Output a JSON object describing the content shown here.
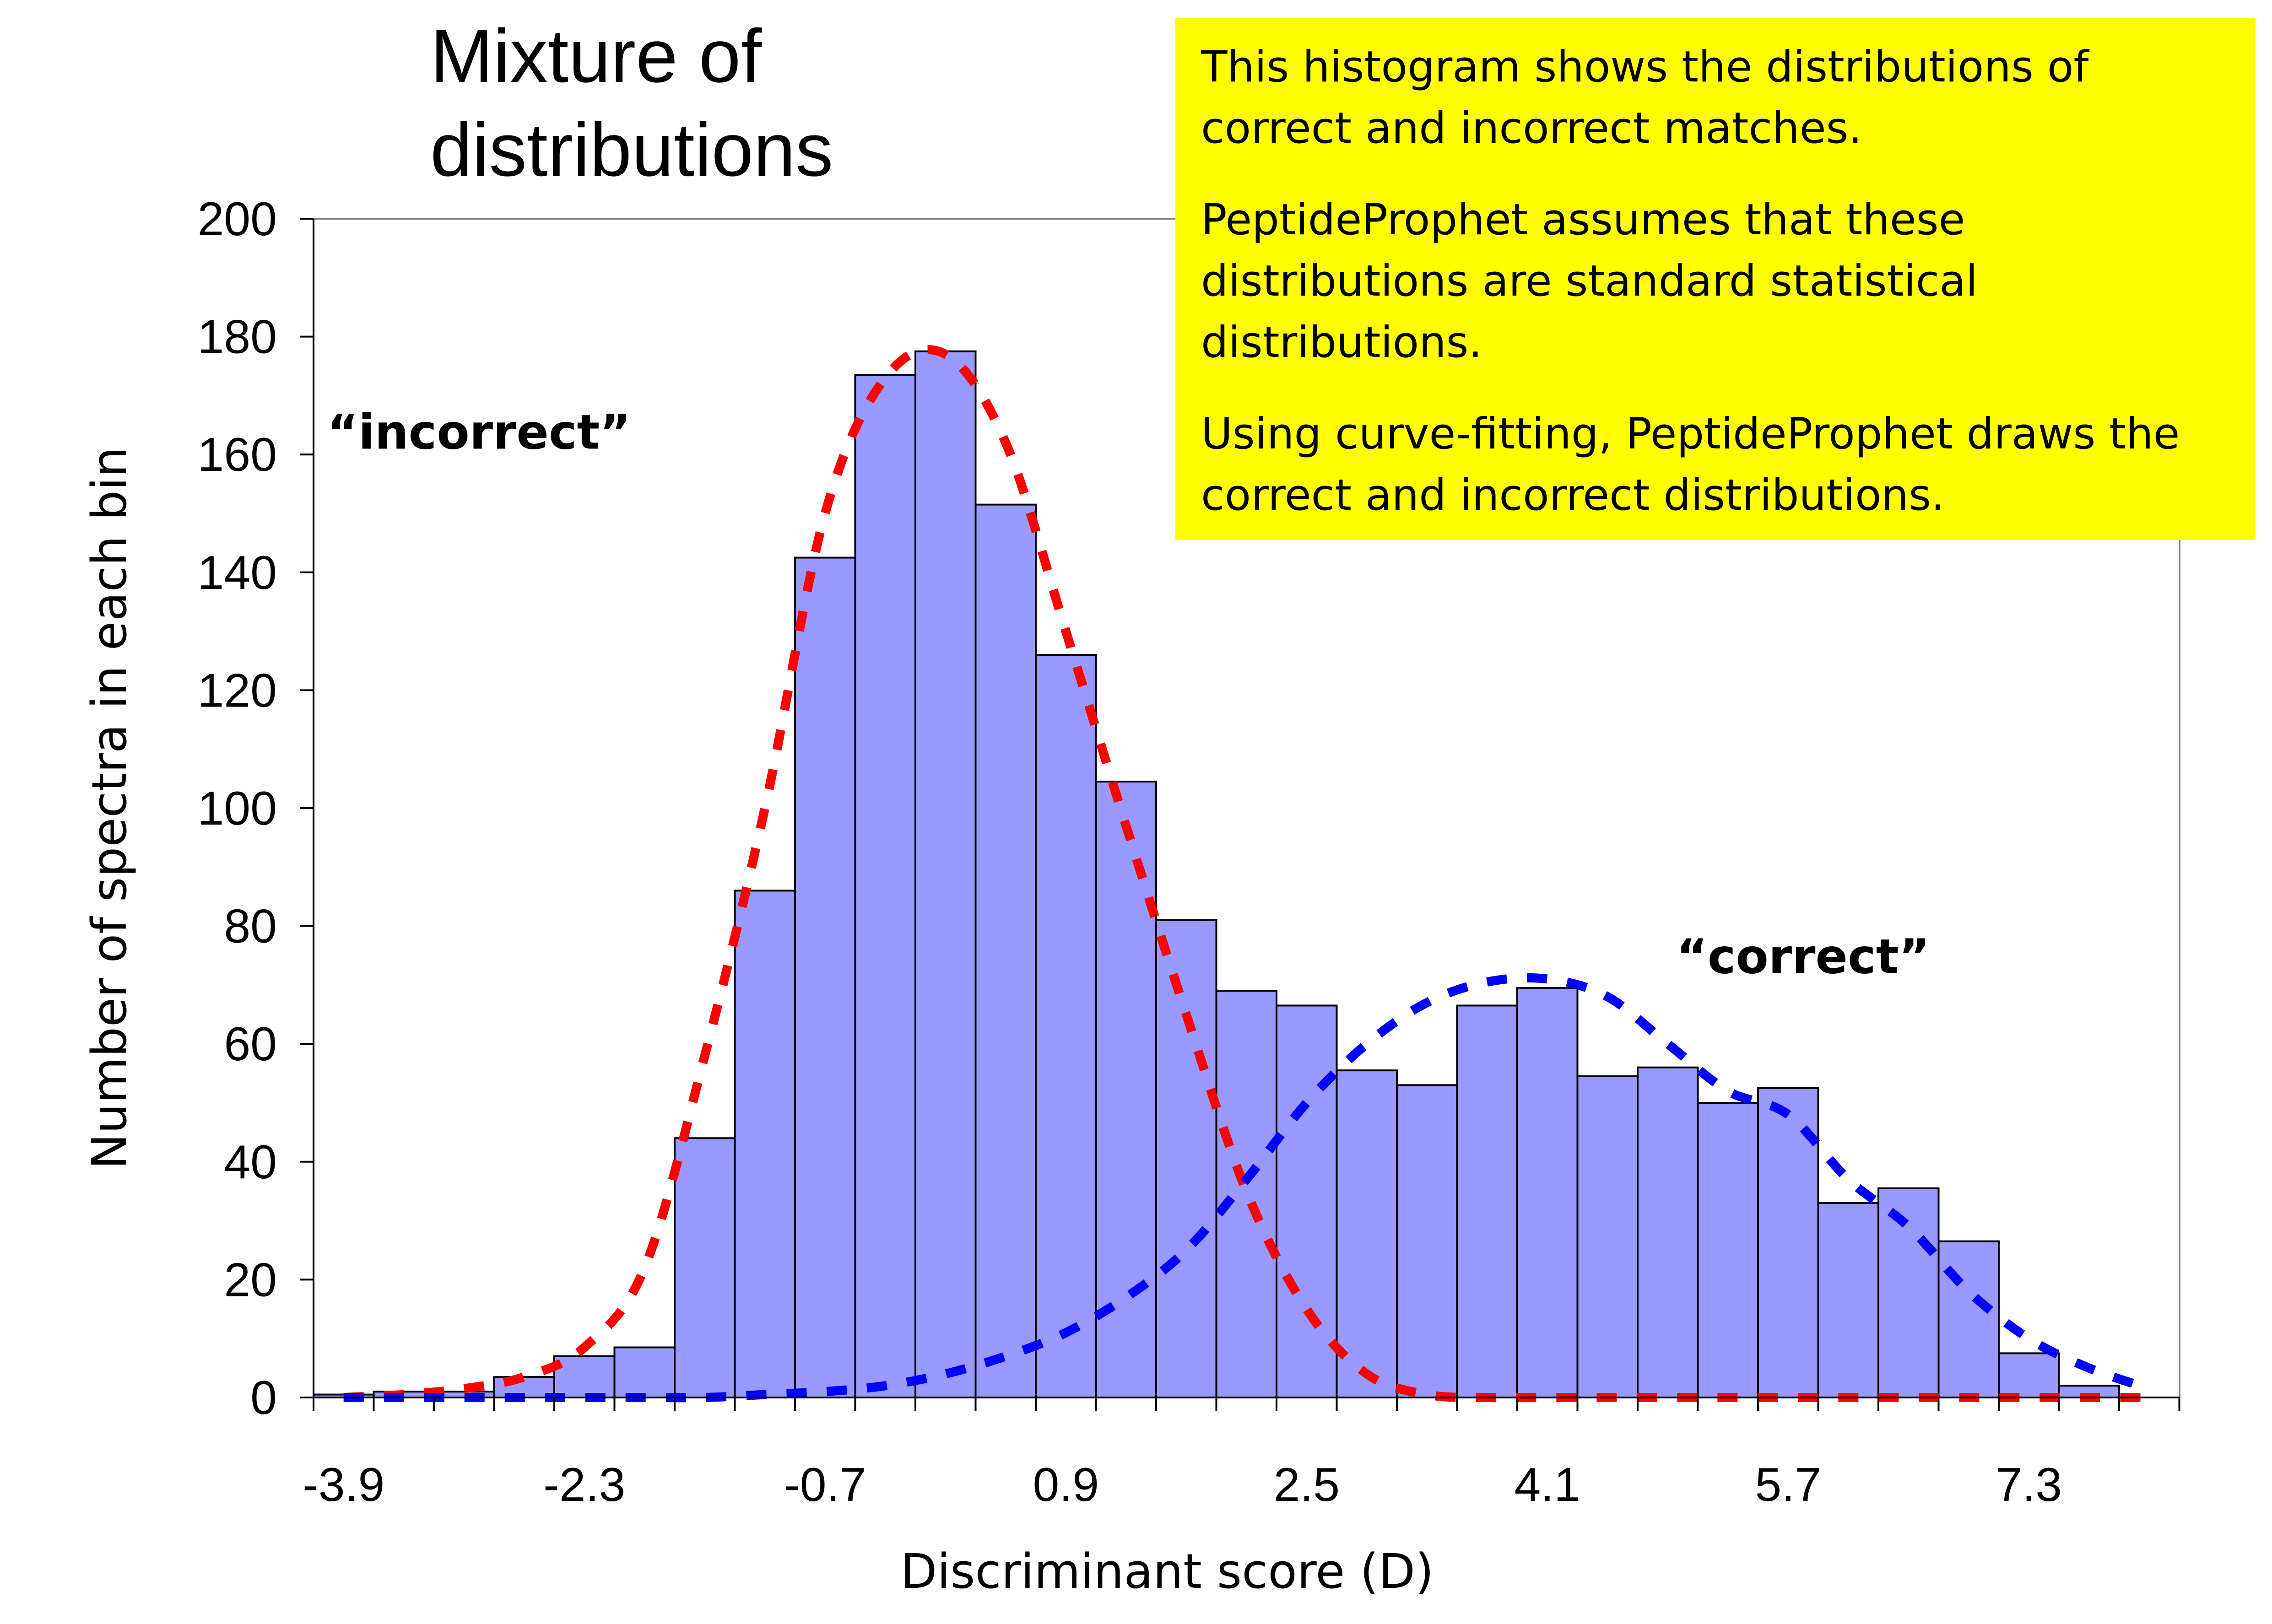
{
  "title_lines": [
    "Mixture of",
    "distributions"
  ],
  "note": {
    "background": "#ffff00",
    "paragraphs": [
      "This histogram shows the distributions of correct and incorrect matches.",
      "PeptideProphet assumes that these distributions are standard statistical distributions.",
      "Using curve-fitting, PeptideProphet draws the correct and incorrect distributions."
    ]
  },
  "chart_data": {
    "type": "bar",
    "xlabel": "Discriminant score (D)",
    "ylabel": "Number of spectra in each bin",
    "ylim": [
      0,
      200
    ],
    "yticks": [
      0,
      20,
      40,
      60,
      80,
      100,
      120,
      140,
      160,
      180,
      200
    ],
    "x_tick_labels": [
      "-3.9",
      "-2.3",
      "-0.7",
      "0.9",
      "2.5",
      "4.1",
      "5.7",
      "7.3"
    ],
    "bin_width": 0.4,
    "categories": [
      "-3.9",
      "-3.5",
      "-3.1",
      "-2.7",
      "-2.3",
      "-1.9",
      "-1.5",
      "-1.1",
      "-0.7",
      "-0.3",
      "0.1",
      "0.5",
      "0.9",
      "1.3",
      "1.7",
      "2.1",
      "2.5",
      "2.9",
      "3.3",
      "3.7",
      "4.1",
      "4.5",
      "4.9",
      "5.3",
      "5.7",
      "6.1",
      "6.5",
      "6.9",
      "7.3",
      "7.7",
      "8.1"
    ],
    "values": [
      0.5,
      1,
      1,
      3.5,
      7,
      8.5,
      44,
      86,
      142.5,
      173.5,
      177.5,
      151.5,
      126,
      104.5,
      81,
      69,
      66.5,
      55.5,
      53,
      66.5,
      69.5,
      54.5,
      56,
      50,
      52.5,
      33,
      35.5,
      26.5,
      7.5,
      2,
      0
    ],
    "bar_color": "#9999ff",
    "curves": [
      {
        "name": "incorrect",
        "color": "#ff0000",
        "style": "dashed",
        "x": [
          -3.9,
          -3.5,
          -3.1,
          -2.7,
          -2.3,
          -1.9,
          -1.5,
          -1.1,
          -0.7,
          -0.3,
          0.1,
          0.5,
          0.9,
          1.3,
          1.7,
          2.1,
          2.5,
          2.9,
          3.3,
          3.7,
          4.1,
          4.5,
          4.9,
          5.3,
          5.7,
          6.1,
          6.5,
          6.9,
          7.3,
          7.7,
          8.1
        ],
        "y": [
          0,
          0.5,
          1.5,
          3.5,
          8.5,
          22,
          58,
          100,
          150,
          173,
          177,
          162,
          130,
          97,
          65,
          35,
          15,
          4,
          0.5,
          0,
          0,
          0,
          0,
          0,
          0,
          0,
          0,
          0,
          0,
          0,
          0
        ]
      },
      {
        "name": "correct",
        "color": "#0000ff",
        "style": "dashed",
        "x": [
          -3.9,
          -3.5,
          -3.1,
          -2.7,
          -2.3,
          -1.9,
          -1.5,
          -1.1,
          -0.7,
          -0.3,
          0.1,
          0.5,
          0.9,
          1.3,
          1.7,
          2.1,
          2.5,
          2.9,
          3.3,
          3.7,
          4.1,
          4.5,
          4.9,
          5.3,
          5.7,
          6.1,
          6.5,
          6.9,
          7.3,
          7.7,
          8.1
        ],
        "y": [
          0,
          0,
          0,
          0,
          0,
          0,
          0,
          0.5,
          1,
          2,
          4,
          7,
          11,
          17,
          25,
          37,
          50,
          60,
          67,
          70.5,
          71,
          68,
          60,
          52,
          48,
          37,
          29,
          18,
          10,
          5,
          1.5
        ]
      }
    ],
    "annotations": [
      {
        "text": "“incorrect”",
        "x": -2.8,
        "y": 161
      },
      {
        "text": "“correct”",
        "x": 6.0,
        "y": 72
      }
    ]
  }
}
